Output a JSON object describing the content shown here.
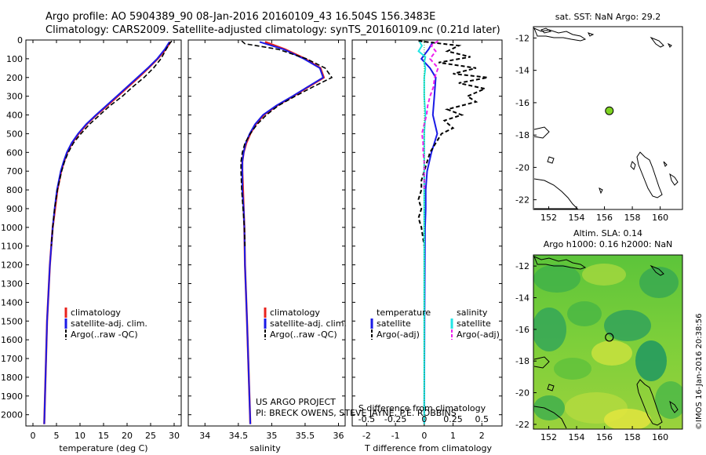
{
  "header": {
    "line1": "Argo profile: AO 5904389_90 08-Jan-2016 20160109_43 16.504S 156.3483E",
    "line2": "Climatology: CARS2009. Satellite-adjusted climatology: synTS_20160109.nc (0.21d later)"
  },
  "colors": {
    "clim": "#e8221c",
    "sat": "#1a1ae6",
    "argo": "#000000",
    "sat_s": "#22e5e5",
    "argo_s": "#ee22ee",
    "marker": "#7ed321"
  },
  "depth_axis": {
    "ticks": [
      0,
      100,
      200,
      300,
      400,
      500,
      600,
      700,
      800,
      900,
      1000,
      1100,
      1200,
      1300,
      1400,
      1500,
      1600,
      1700,
      1800,
      1900,
      2000
    ],
    "range": [
      0,
      2060
    ]
  },
  "credits": {
    "line1": "US ARGO PROJECT",
    "line2": "PI: BRECK OWENS, STEVE JAYNE, P.E. ROBBINS",
    "stamp": "©IMOS 16-Jan-2016 20:38:56"
  },
  "chart_data": [
    {
      "type": "line",
      "xlabel": "temperature (deg C)",
      "xlim": [
        -1.5,
        31.5
      ],
      "xticks": [
        0,
        5,
        10,
        15,
        20,
        25,
        30
      ],
      "ylim": [
        0,
        2060
      ],
      "legend": [
        "climatology",
        "satellite-adj. clim.",
        "Argo(..raw -QC)"
      ],
      "series": [
        {
          "name": "climatology",
          "depth": [
            10,
            50,
            100,
            150,
            200,
            250,
            300,
            350,
            400,
            450,
            500,
            550,
            600,
            650,
            700,
            800,
            900,
            1000,
            1200,
            1500,
            2050
          ],
          "values": [
            29.2,
            28.2,
            26.5,
            24.5,
            22.4,
            20.2,
            18.0,
            15.8,
            13.5,
            11.4,
            9.7,
            8.3,
            7.3,
            6.6,
            6.0,
            5.2,
            4.7,
            4.2,
            3.6,
            3.0,
            2.4
          ]
        },
        {
          "name": "satellite-adj. clim.",
          "depth": [
            10,
            50,
            100,
            150,
            200,
            250,
            300,
            350,
            400,
            450,
            500,
            550,
            600,
            650,
            700,
            800,
            900,
            1000,
            1200,
            1500,
            2050
          ],
          "values": [
            29.0,
            28.0,
            26.4,
            24.4,
            22.2,
            20.0,
            17.8,
            15.6,
            13.4,
            11.3,
            9.6,
            8.2,
            7.2,
            6.5,
            5.9,
            5.1,
            4.6,
            4.2,
            3.6,
            3.0,
            2.4
          ]
        },
        {
          "name": "Argo(..raw -QC)",
          "depth": [
            5,
            20,
            50,
            100,
            150,
            200,
            250,
            300,
            350,
            400,
            450,
            500,
            550,
            600,
            650,
            700,
            800,
            900,
            1000,
            1100
          ],
          "values": [
            29.5,
            29.0,
            28.3,
            27.2,
            25.6,
            23.6,
            21.2,
            19.0,
            16.4,
            14.2,
            12.0,
            10.2,
            8.6,
            7.5,
            6.7,
            6.1,
            5.2,
            4.6,
            4.2,
            3.9
          ]
        }
      ]
    },
    {
      "type": "line",
      "xlabel": "salinity",
      "xlim": [
        33.75,
        36.1
      ],
      "xticks": [
        34,
        34.5,
        35,
        35.5,
        36
      ],
      "ylim": [
        0,
        2060
      ],
      "legend": [
        "climatology",
        "satellite-adj. clim.",
        "Argo(..raw -QC)"
      ],
      "series": [
        {
          "name": "climatology",
          "depth": [
            10,
            50,
            100,
            150,
            200,
            250,
            300,
            350,
            400,
            450,
            500,
            550,
            600,
            650,
            700,
            800,
            900,
            1000,
            1200,
            1500,
            2050
          ],
          "values": [
            34.9,
            35.2,
            35.5,
            35.73,
            35.78,
            35.55,
            35.32,
            35.08,
            34.88,
            34.76,
            34.68,
            34.62,
            34.58,
            34.56,
            34.56,
            34.57,
            34.58,
            34.59,
            34.6,
            34.63,
            34.68
          ]
        },
        {
          "name": "satellite-adj. clim.",
          "depth": [
            10,
            50,
            100,
            150,
            200,
            250,
            300,
            350,
            400,
            450,
            500,
            550,
            600,
            650,
            700,
            800,
            900,
            1000,
            1200,
            1500,
            2050
          ],
          "values": [
            34.82,
            35.18,
            35.48,
            35.72,
            35.77,
            35.54,
            35.31,
            35.07,
            34.87,
            34.75,
            34.67,
            34.61,
            34.58,
            34.56,
            34.56,
            34.56,
            34.58,
            34.59,
            34.6,
            34.63,
            34.68
          ]
        },
        {
          "name": "Argo(..raw -QC)",
          "depth": [
            5,
            20,
            50,
            100,
            150,
            200,
            250,
            300,
            350,
            400,
            450,
            500,
            550,
            600,
            650,
            700,
            800,
            900,
            1000,
            1100
          ],
          "values": [
            34.55,
            34.6,
            35.1,
            35.52,
            35.8,
            35.9,
            35.62,
            35.35,
            35.1,
            34.92,
            34.78,
            34.68,
            34.6,
            34.56,
            34.54,
            34.54,
            34.55,
            34.57,
            34.59,
            34.6
          ]
        }
      ]
    },
    {
      "type": "line",
      "xlabel": "T difference from climatology",
      "top_label": "S difference from climatology",
      "xlim": [
        -2.5,
        2.7
      ],
      "xticks": [
        -2,
        -1,
        0,
        1,
        2
      ],
      "top_xticks": [
        "-0.5",
        "-0.25",
        "0",
        "0.25",
        "0.5"
      ],
      "ylim": [
        0,
        2060
      ],
      "legend": [
        "temperature",
        "satellite",
        "Argo(-adj)",
        "salinity",
        "satellite",
        "Argo(-adj)"
      ],
      "series": [
        {
          "name": "temperature satellite",
          "depth": [
            10,
            50,
            100,
            150,
            200,
            300,
            400,
            500,
            600,
            700,
            800,
            900,
            1000,
            1200,
            1500,
            2050
          ],
          "values": [
            0.3,
            0.15,
            -0.1,
            0.2,
            0.4,
            0.35,
            0.3,
            0.45,
            0.25,
            0.1,
            0.05,
            0.05,
            0.03,
            0.02,
            0.01,
            0.0
          ]
        },
        {
          "name": "temperature Argo(-adj)",
          "depth": [
            5,
            30,
            60,
            90,
            120,
            150,
            180,
            200,
            230,
            260,
            300,
            330,
            370,
            400,
            430,
            470,
            500,
            550,
            600,
            650,
            700,
            750,
            800,
            850,
            900,
            950,
            1000,
            1050,
            1100
          ],
          "values": [
            -0.2,
            1.2,
            0.8,
            1.6,
            0.5,
            1.8,
            1.0,
            2.2,
            1.2,
            2.1,
            1.5,
            1.8,
            0.8,
            1.3,
            0.7,
            1.0,
            0.6,
            0.4,
            0.2,
            0.1,
            0.0,
            -0.1,
            -0.1,
            -0.2,
            -0.1,
            -0.2,
            -0.1,
            -0.05,
            0.0
          ]
        },
        {
          "name": "salinity satellite",
          "depth": [
            10,
            30,
            60,
            90,
            120,
            150,
            200,
            300,
            400,
            500,
            600,
            700,
            800,
            900,
            1000,
            1200,
            1500,
            2050
          ],
          "values": [
            -0.04,
            -0.02,
            -0.05,
            0.01,
            0.0,
            0.01,
            0.0,
            0.0,
            0.01,
            0.0,
            0.0,
            0.0,
            0.0,
            0.0,
            0.0,
            0.0,
            0.0,
            0.0
          ]
        },
        {
          "name": "salinity Argo(-adj)",
          "depth": [
            5,
            30,
            60,
            100,
            150,
            200,
            250,
            300,
            350,
            400,
            450,
            500,
            550,
            600,
            650,
            700,
            800
          ],
          "values": [
            0.12,
            0.06,
            0.1,
            0.05,
            0.12,
            0.09,
            0.08,
            0.05,
            0.03,
            0.02,
            0.0,
            -0.02,
            -0.01,
            -0.01,
            0.0,
            0.0,
            0.0
          ]
        }
      ]
    },
    {
      "type": "map",
      "title": "sat. SST: NaN Argo: 29.2",
      "xticks": [
        152,
        154,
        156,
        158,
        160
      ],
      "yticks": [
        -12,
        -14,
        -16,
        -18,
        -20,
        -22
      ],
      "marker": {
        "lon": 156.35,
        "lat": -16.5
      }
    },
    {
      "type": "heatmap",
      "title1": "Altim. SLA: 0.14",
      "title2": "Argo h1000: 0.16 h2000: NaN",
      "xticks": [
        152,
        154,
        156,
        158,
        160
      ],
      "yticks": [
        -12,
        -14,
        -16,
        -18,
        -20,
        -22
      ],
      "marker": {
        "lon": 156.35,
        "lat": -16.5
      }
    }
  ]
}
